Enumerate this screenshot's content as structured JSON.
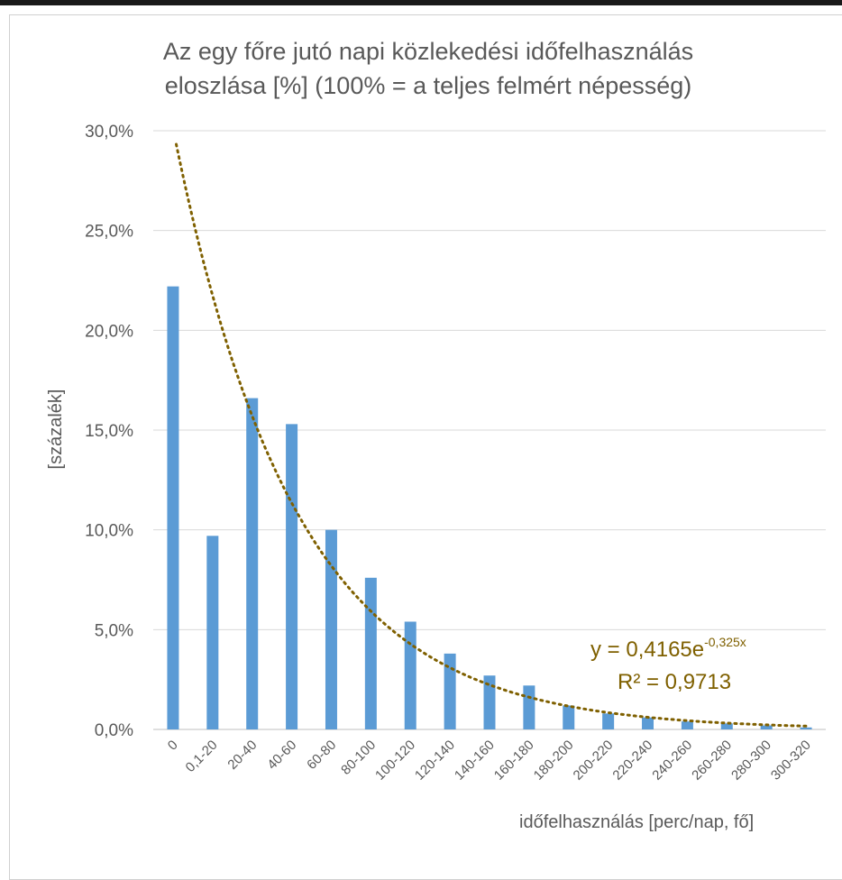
{
  "chart_data": {
    "type": "bar",
    "title_line1": "Az egy főre jutó napi közlekedési időfelhasználás",
    "title_line2": "eloszlása [%] (100% = a teljes felmért népesség)",
    "ylabel": "[százalék]",
    "xlabel": "időfelhasználás [perc/nap, fő]",
    "ylim": [
      0,
      30
    ],
    "y_ticks": [
      "0,0%",
      "5,0%",
      "10,0%",
      "15,0%",
      "20,0%",
      "25,0%",
      "30,0%"
    ],
    "categories": [
      "0",
      "0,1-20",
      "20-40",
      "40-60",
      "60-80",
      "80-100",
      "100-120",
      "120-140",
      "140-160",
      "160-180",
      "180-200",
      "200-220",
      "220-240",
      "240-260",
      "260-280",
      "280-300",
      "300-320"
    ],
    "values": [
      22.2,
      9.7,
      16.6,
      15.3,
      10.0,
      7.6,
      5.4,
      3.8,
      2.7,
      2.2,
      1.2,
      0.8,
      0.6,
      0.4,
      0.3,
      0.2,
      0.1
    ],
    "trendline": {
      "type": "exponential",
      "a": 0.4165,
      "b": -0.325,
      "color": "#7f6000",
      "equation_base": "y = 0,4165e",
      "equation_exponent": "-0,325x",
      "r_squared": "R² = 0,9713"
    },
    "bar_color": "#5b9bd5",
    "grid": true,
    "legend": "none"
  }
}
